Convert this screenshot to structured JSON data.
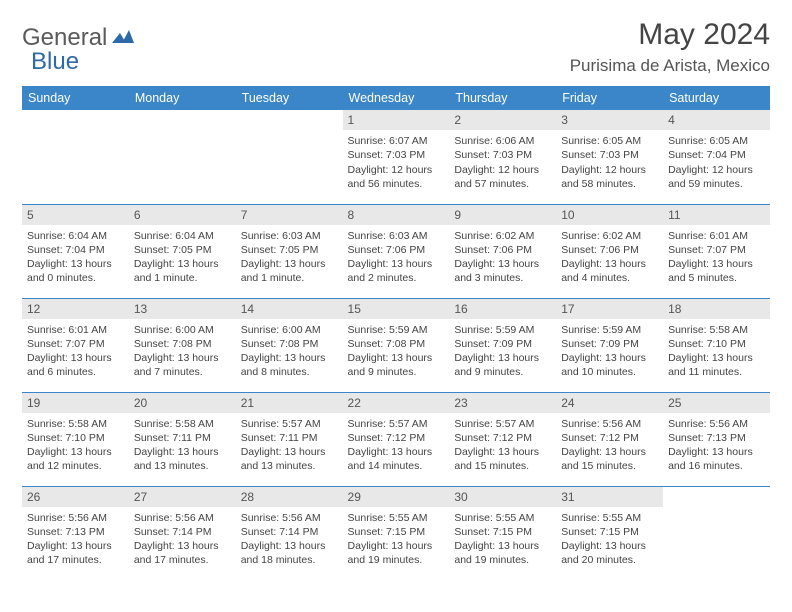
{
  "brand": {
    "name1": "General",
    "name2": "Blue",
    "color1": "#6a6a6a",
    "color2": "#2f6aa8"
  },
  "title": "May 2024",
  "location": "Purisima de Arista, Mexico",
  "colors": {
    "header_bg": "#3a86c8",
    "header_text": "#ffffff",
    "divider": "#3a86c8",
    "daynum_bg": "#e8e8e8",
    "text": "#444444",
    "background": "#ffffff"
  },
  "daysOfWeek": [
    "Sunday",
    "Monday",
    "Tuesday",
    "Wednesday",
    "Thursday",
    "Friday",
    "Saturday"
  ],
  "weeks": [
    [
      null,
      null,
      null,
      {
        "n": "1",
        "sr": "6:07 AM",
        "ss": "7:03 PM",
        "dl": "12 hours and 56 minutes."
      },
      {
        "n": "2",
        "sr": "6:06 AM",
        "ss": "7:03 PM",
        "dl": "12 hours and 57 minutes."
      },
      {
        "n": "3",
        "sr": "6:05 AM",
        "ss": "7:03 PM",
        "dl": "12 hours and 58 minutes."
      },
      {
        "n": "4",
        "sr": "6:05 AM",
        "ss": "7:04 PM",
        "dl": "12 hours and 59 minutes."
      }
    ],
    [
      {
        "n": "5",
        "sr": "6:04 AM",
        "ss": "7:04 PM",
        "dl": "13 hours and 0 minutes."
      },
      {
        "n": "6",
        "sr": "6:04 AM",
        "ss": "7:05 PM",
        "dl": "13 hours and 1 minute."
      },
      {
        "n": "7",
        "sr": "6:03 AM",
        "ss": "7:05 PM",
        "dl": "13 hours and 1 minute."
      },
      {
        "n": "8",
        "sr": "6:03 AM",
        "ss": "7:06 PM",
        "dl": "13 hours and 2 minutes."
      },
      {
        "n": "9",
        "sr": "6:02 AM",
        "ss": "7:06 PM",
        "dl": "13 hours and 3 minutes."
      },
      {
        "n": "10",
        "sr": "6:02 AM",
        "ss": "7:06 PM",
        "dl": "13 hours and 4 minutes."
      },
      {
        "n": "11",
        "sr": "6:01 AM",
        "ss": "7:07 PM",
        "dl": "13 hours and 5 minutes."
      }
    ],
    [
      {
        "n": "12",
        "sr": "6:01 AM",
        "ss": "7:07 PM",
        "dl": "13 hours and 6 minutes."
      },
      {
        "n": "13",
        "sr": "6:00 AM",
        "ss": "7:08 PM",
        "dl": "13 hours and 7 minutes."
      },
      {
        "n": "14",
        "sr": "6:00 AM",
        "ss": "7:08 PM",
        "dl": "13 hours and 8 minutes."
      },
      {
        "n": "15",
        "sr": "5:59 AM",
        "ss": "7:08 PM",
        "dl": "13 hours and 9 minutes."
      },
      {
        "n": "16",
        "sr": "5:59 AM",
        "ss": "7:09 PM",
        "dl": "13 hours and 9 minutes."
      },
      {
        "n": "17",
        "sr": "5:59 AM",
        "ss": "7:09 PM",
        "dl": "13 hours and 10 minutes."
      },
      {
        "n": "18",
        "sr": "5:58 AM",
        "ss": "7:10 PM",
        "dl": "13 hours and 11 minutes."
      }
    ],
    [
      {
        "n": "19",
        "sr": "5:58 AM",
        "ss": "7:10 PM",
        "dl": "13 hours and 12 minutes."
      },
      {
        "n": "20",
        "sr": "5:58 AM",
        "ss": "7:11 PM",
        "dl": "13 hours and 13 minutes."
      },
      {
        "n": "21",
        "sr": "5:57 AM",
        "ss": "7:11 PM",
        "dl": "13 hours and 13 minutes."
      },
      {
        "n": "22",
        "sr": "5:57 AM",
        "ss": "7:12 PM",
        "dl": "13 hours and 14 minutes."
      },
      {
        "n": "23",
        "sr": "5:57 AM",
        "ss": "7:12 PM",
        "dl": "13 hours and 15 minutes."
      },
      {
        "n": "24",
        "sr": "5:56 AM",
        "ss": "7:12 PM",
        "dl": "13 hours and 15 minutes."
      },
      {
        "n": "25",
        "sr": "5:56 AM",
        "ss": "7:13 PM",
        "dl": "13 hours and 16 minutes."
      }
    ],
    [
      {
        "n": "26",
        "sr": "5:56 AM",
        "ss": "7:13 PM",
        "dl": "13 hours and 17 minutes."
      },
      {
        "n": "27",
        "sr": "5:56 AM",
        "ss": "7:14 PM",
        "dl": "13 hours and 17 minutes."
      },
      {
        "n": "28",
        "sr": "5:56 AM",
        "ss": "7:14 PM",
        "dl": "13 hours and 18 minutes."
      },
      {
        "n": "29",
        "sr": "5:55 AM",
        "ss": "7:15 PM",
        "dl": "13 hours and 19 minutes."
      },
      {
        "n": "30",
        "sr": "5:55 AM",
        "ss": "7:15 PM",
        "dl": "13 hours and 19 minutes."
      },
      {
        "n": "31",
        "sr": "5:55 AM",
        "ss": "7:15 PM",
        "dl": "13 hours and 20 minutes."
      },
      null
    ]
  ],
  "labels": {
    "sunrise": "Sunrise:",
    "sunset": "Sunset:",
    "daylight": "Daylight:"
  }
}
